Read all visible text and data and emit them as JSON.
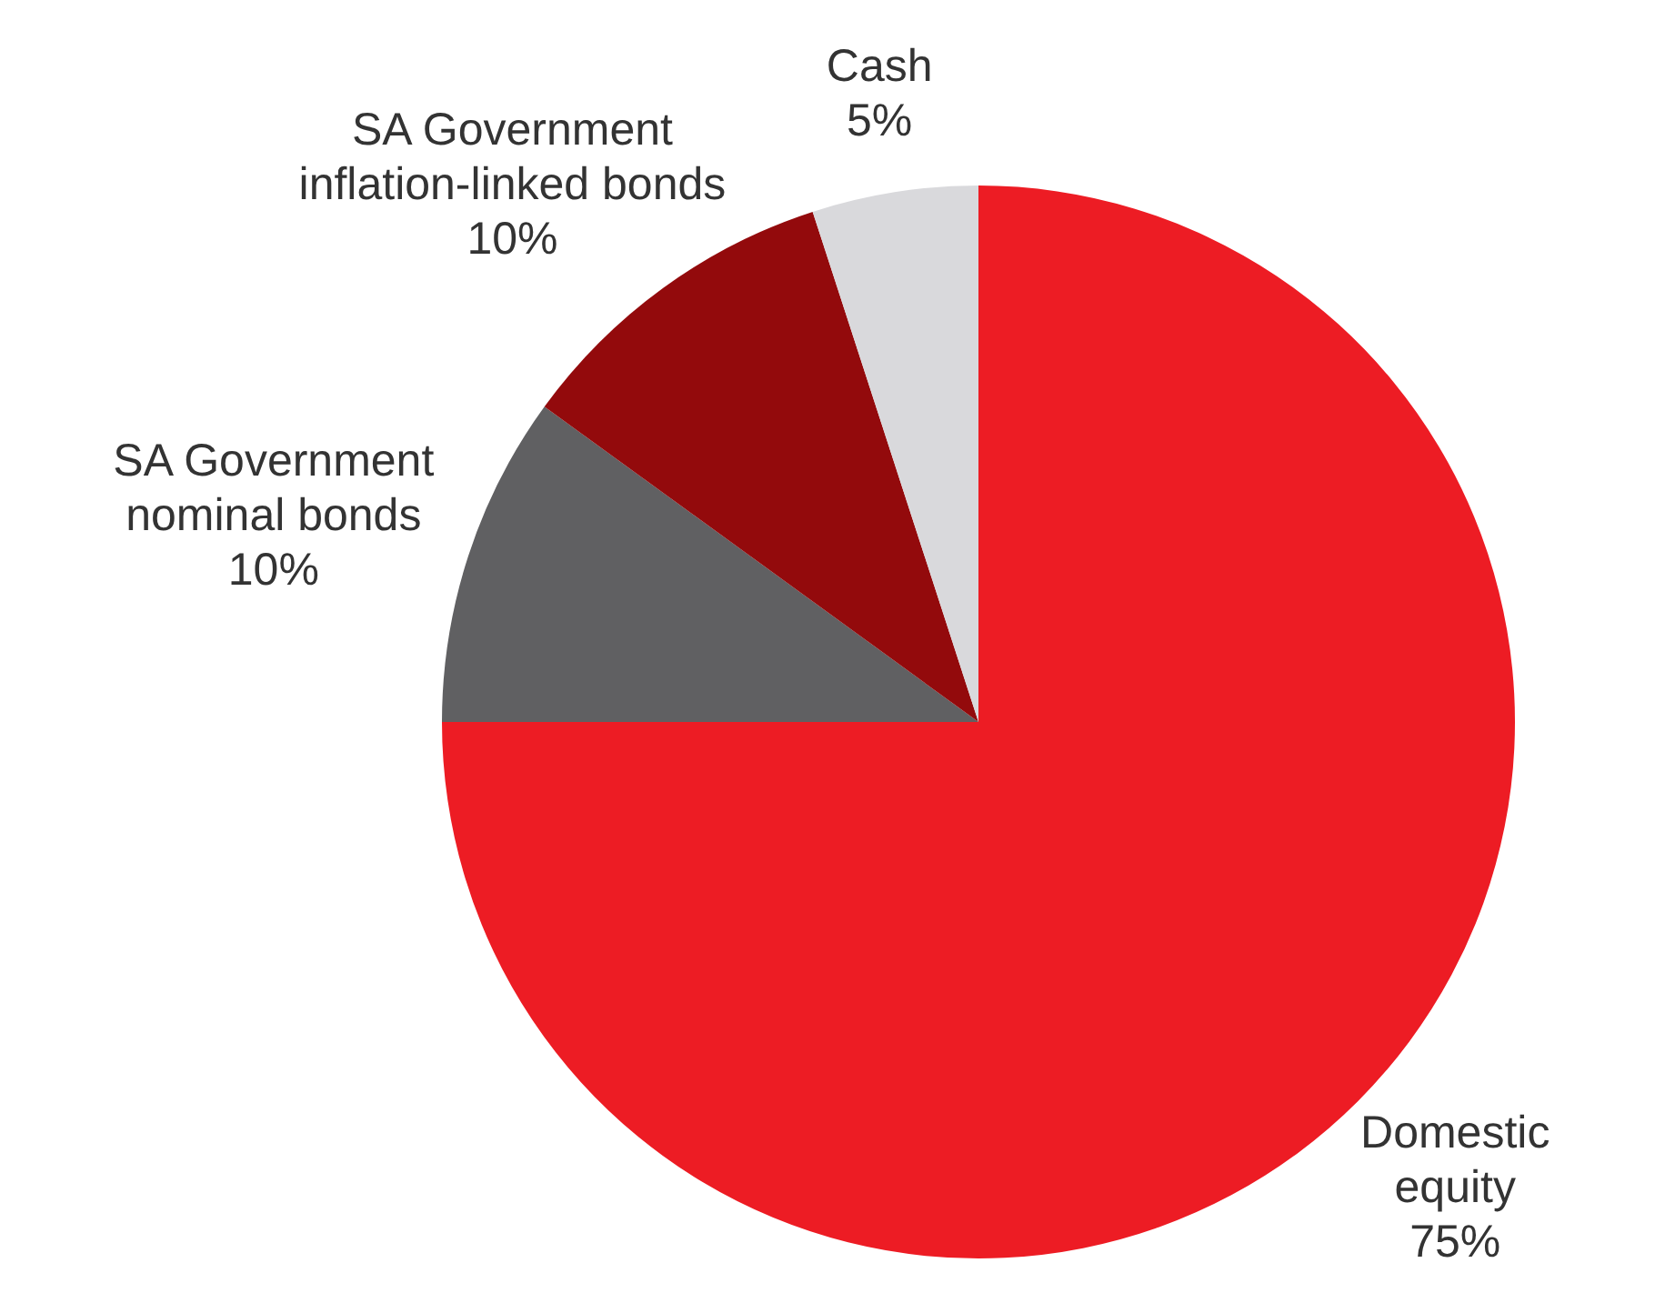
{
  "chart_data": {
    "type": "pie",
    "categories": [
      "Domestic equity",
      "SA Government nominal bonds",
      "SA Government inflation-linked bonds",
      "Cash"
    ],
    "values": [
      75,
      10,
      10,
      5
    ],
    "colors": [
      "#ed1c24",
      "#606062",
      "#930a0c",
      "#d9d9dc"
    ],
    "value_labels": [
      "75%",
      "10%",
      "10%",
      "5%"
    ],
    "legend": false
  }
}
